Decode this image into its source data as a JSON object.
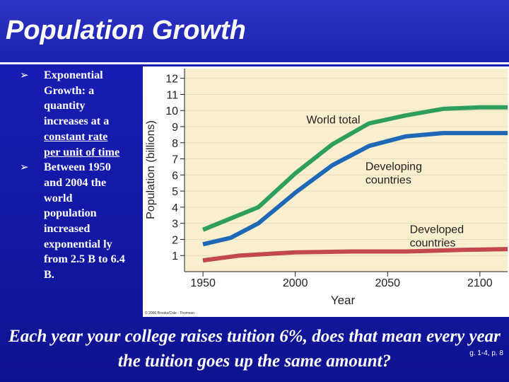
{
  "slide": {
    "title": "Population Growth",
    "bullets": [
      {
        "marker": "➢",
        "pre": "Exponential Growth: a quantity increases at a ",
        "underlined": "constant rate per unit of time",
        "post": ""
      },
      {
        "marker": "➢",
        "pre": "Between 1950 and 2004 the world population increased exponential ly from 2.5 B to 6.4 B.",
        "underlined": "",
        "post": ""
      }
    ],
    "question": "Each year your college raises tuition 6%, does that mean every year the tuition goes up the same amount?",
    "figure_ref": "g. 1-4, p. 8"
  },
  "chart_data": {
    "type": "line",
    "xlabel": "Year",
    "ylabel": "Population (billions)",
    "xlim": [
      1940,
      2115
    ],
    "ylim": [
      0,
      12.6
    ],
    "x_ticks": [
      1950,
      2000,
      2050,
      2100
    ],
    "y_ticks": [
      1,
      2,
      3,
      4,
      5,
      6,
      7,
      8,
      9,
      10,
      11,
      12
    ],
    "grid": "y-major",
    "copyright": "© 2006 Brooks/Cole - Thomson",
    "series": [
      {
        "name": "World total",
        "color": "#2e9e5e",
        "points": [
          [
            1950,
            2.6
          ],
          [
            1965,
            3.3
          ],
          [
            1980,
            4.0
          ],
          [
            2000,
            6.1
          ],
          [
            2020,
            7.9
          ],
          [
            2040,
            9.2
          ],
          [
            2060,
            9.7
          ],
          [
            2080,
            10.1
          ],
          [
            2100,
            10.2
          ],
          [
            2115,
            10.2
          ]
        ]
      },
      {
        "name": "Developing countries",
        "color": "#1f67b7",
        "points": [
          [
            1950,
            1.7
          ],
          [
            1965,
            2.1
          ],
          [
            1980,
            3.0
          ],
          [
            2000,
            4.9
          ],
          [
            2020,
            6.6
          ],
          [
            2040,
            7.8
          ],
          [
            2060,
            8.4
          ],
          [
            2080,
            8.6
          ],
          [
            2100,
            8.6
          ],
          [
            2115,
            8.6
          ]
        ]
      },
      {
        "name": "Developed countries",
        "color": "#c2484b",
        "points": [
          [
            1950,
            0.7
          ],
          [
            1970,
            1.0
          ],
          [
            2000,
            1.2
          ],
          [
            2030,
            1.25
          ],
          [
            2060,
            1.25
          ],
          [
            2090,
            1.35
          ],
          [
            2115,
            1.4
          ]
        ]
      }
    ],
    "annotations": [
      {
        "text": "World total",
        "lines": [
          "World total"
        ],
        "x": 2006,
        "y": 9.2
      },
      {
        "text": "Developing countries",
        "lines": [
          "Developing",
          "countries"
        ],
        "x": 2038,
        "y": 6.3
      },
      {
        "text": "Developed countries",
        "lines": [
          "Developed",
          "countries"
        ],
        "x": 2062,
        "y": 2.4
      }
    ]
  }
}
